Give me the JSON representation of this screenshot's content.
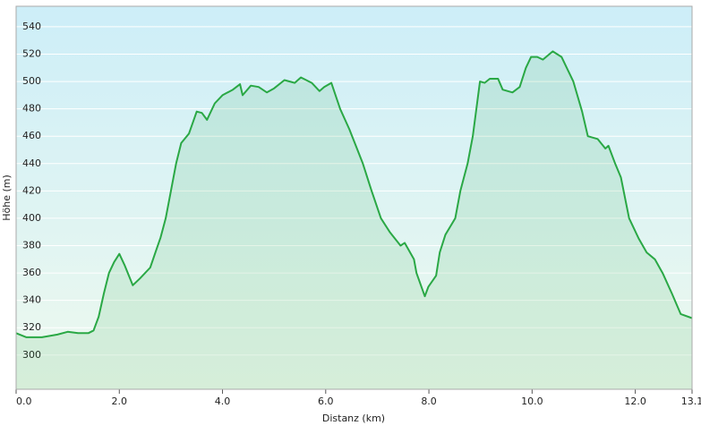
{
  "chart_data": {
    "type": "area",
    "xlabel": "Distanz  (km)",
    "ylabel": "Höhe (m)",
    "x": [
      0,
      0.2,
      0.5,
      0.8,
      1.0,
      1.2,
      1.4,
      1.5,
      1.6,
      1.7,
      1.8,
      1.9,
      2.0,
      2.1,
      2.26,
      2.4,
      2.6,
      2.7,
      2.8,
      2.9,
      3.0,
      3.1,
      3.2,
      3.35,
      3.5,
      3.6,
      3.7,
      3.85,
      4.0,
      4.2,
      4.34,
      4.39,
      4.55,
      4.7,
      4.86,
      5.0,
      5.2,
      5.4,
      5.52,
      5.73,
      5.88,
      5.97,
      6.11,
      6.28,
      6.46,
      6.72,
      6.89,
      7.07,
      7.24,
      7.45,
      7.53,
      7.71,
      7.76,
      7.92,
      7.99,
      8.14,
      8.21,
      8.32,
      8.51,
      8.61,
      8.75,
      8.85,
      8.92,
      8.99,
      9.08,
      9.18,
      9.34,
      9.43,
      9.62,
      9.76,
      9.88,
      9.98,
      10.1,
      10.21,
      10.4,
      10.57,
      10.8,
      10.97,
      11.08,
      11.27,
      11.42,
      11.48,
      11.61,
      11.72,
      11.88,
      12.07,
      12.22,
      12.38,
      12.53,
      12.71,
      12.88,
      13.1
    ],
    "values": [
      316,
      313,
      313,
      315,
      317,
      316,
      316,
      318,
      328,
      345,
      360,
      368,
      374,
      366,
      351,
      356,
      364,
      375,
      386,
      400,
      420,
      440,
      455,
      462,
      478,
      477,
      472,
      484,
      490,
      494,
      498,
      490,
      497,
      496,
      492,
      495,
      501,
      499,
      503,
      499,
      493,
      496,
      499,
      480,
      465,
      440,
      420,
      400,
      390,
      380,
      382,
      370,
      360,
      343,
      350,
      358,
      375,
      388,
      400,
      420,
      440,
      460,
      480,
      500,
      499,
      502,
      502,
      494,
      492,
      496,
      510,
      518,
      518,
      516,
      522,
      518,
      500,
      478,
      460,
      458,
      451,
      453,
      440,
      430,
      400,
      385,
      375,
      370,
      360,
      345,
      330,
      327
    ],
    "color": "#2aa845",
    "xlim": [
      0,
      13.1
    ],
    "xticks": [
      {
        "value": 0,
        "label": "0.0"
      },
      {
        "value": 2,
        "label": "2.0"
      },
      {
        "value": 4,
        "label": "4.0"
      },
      {
        "value": 6,
        "label": "6.0"
      },
      {
        "value": 8,
        "label": "8.0"
      },
      {
        "value": 10,
        "label": "10.0"
      },
      {
        "value": 12,
        "label": "12.0"
      },
      13.1
    ],
    "ylim": [
      275,
      555
    ],
    "yticks": [
      300,
      320,
      340,
      360,
      380,
      400,
      420,
      440,
      460,
      480,
      500,
      520,
      540
    ],
    "grid": true
  }
}
